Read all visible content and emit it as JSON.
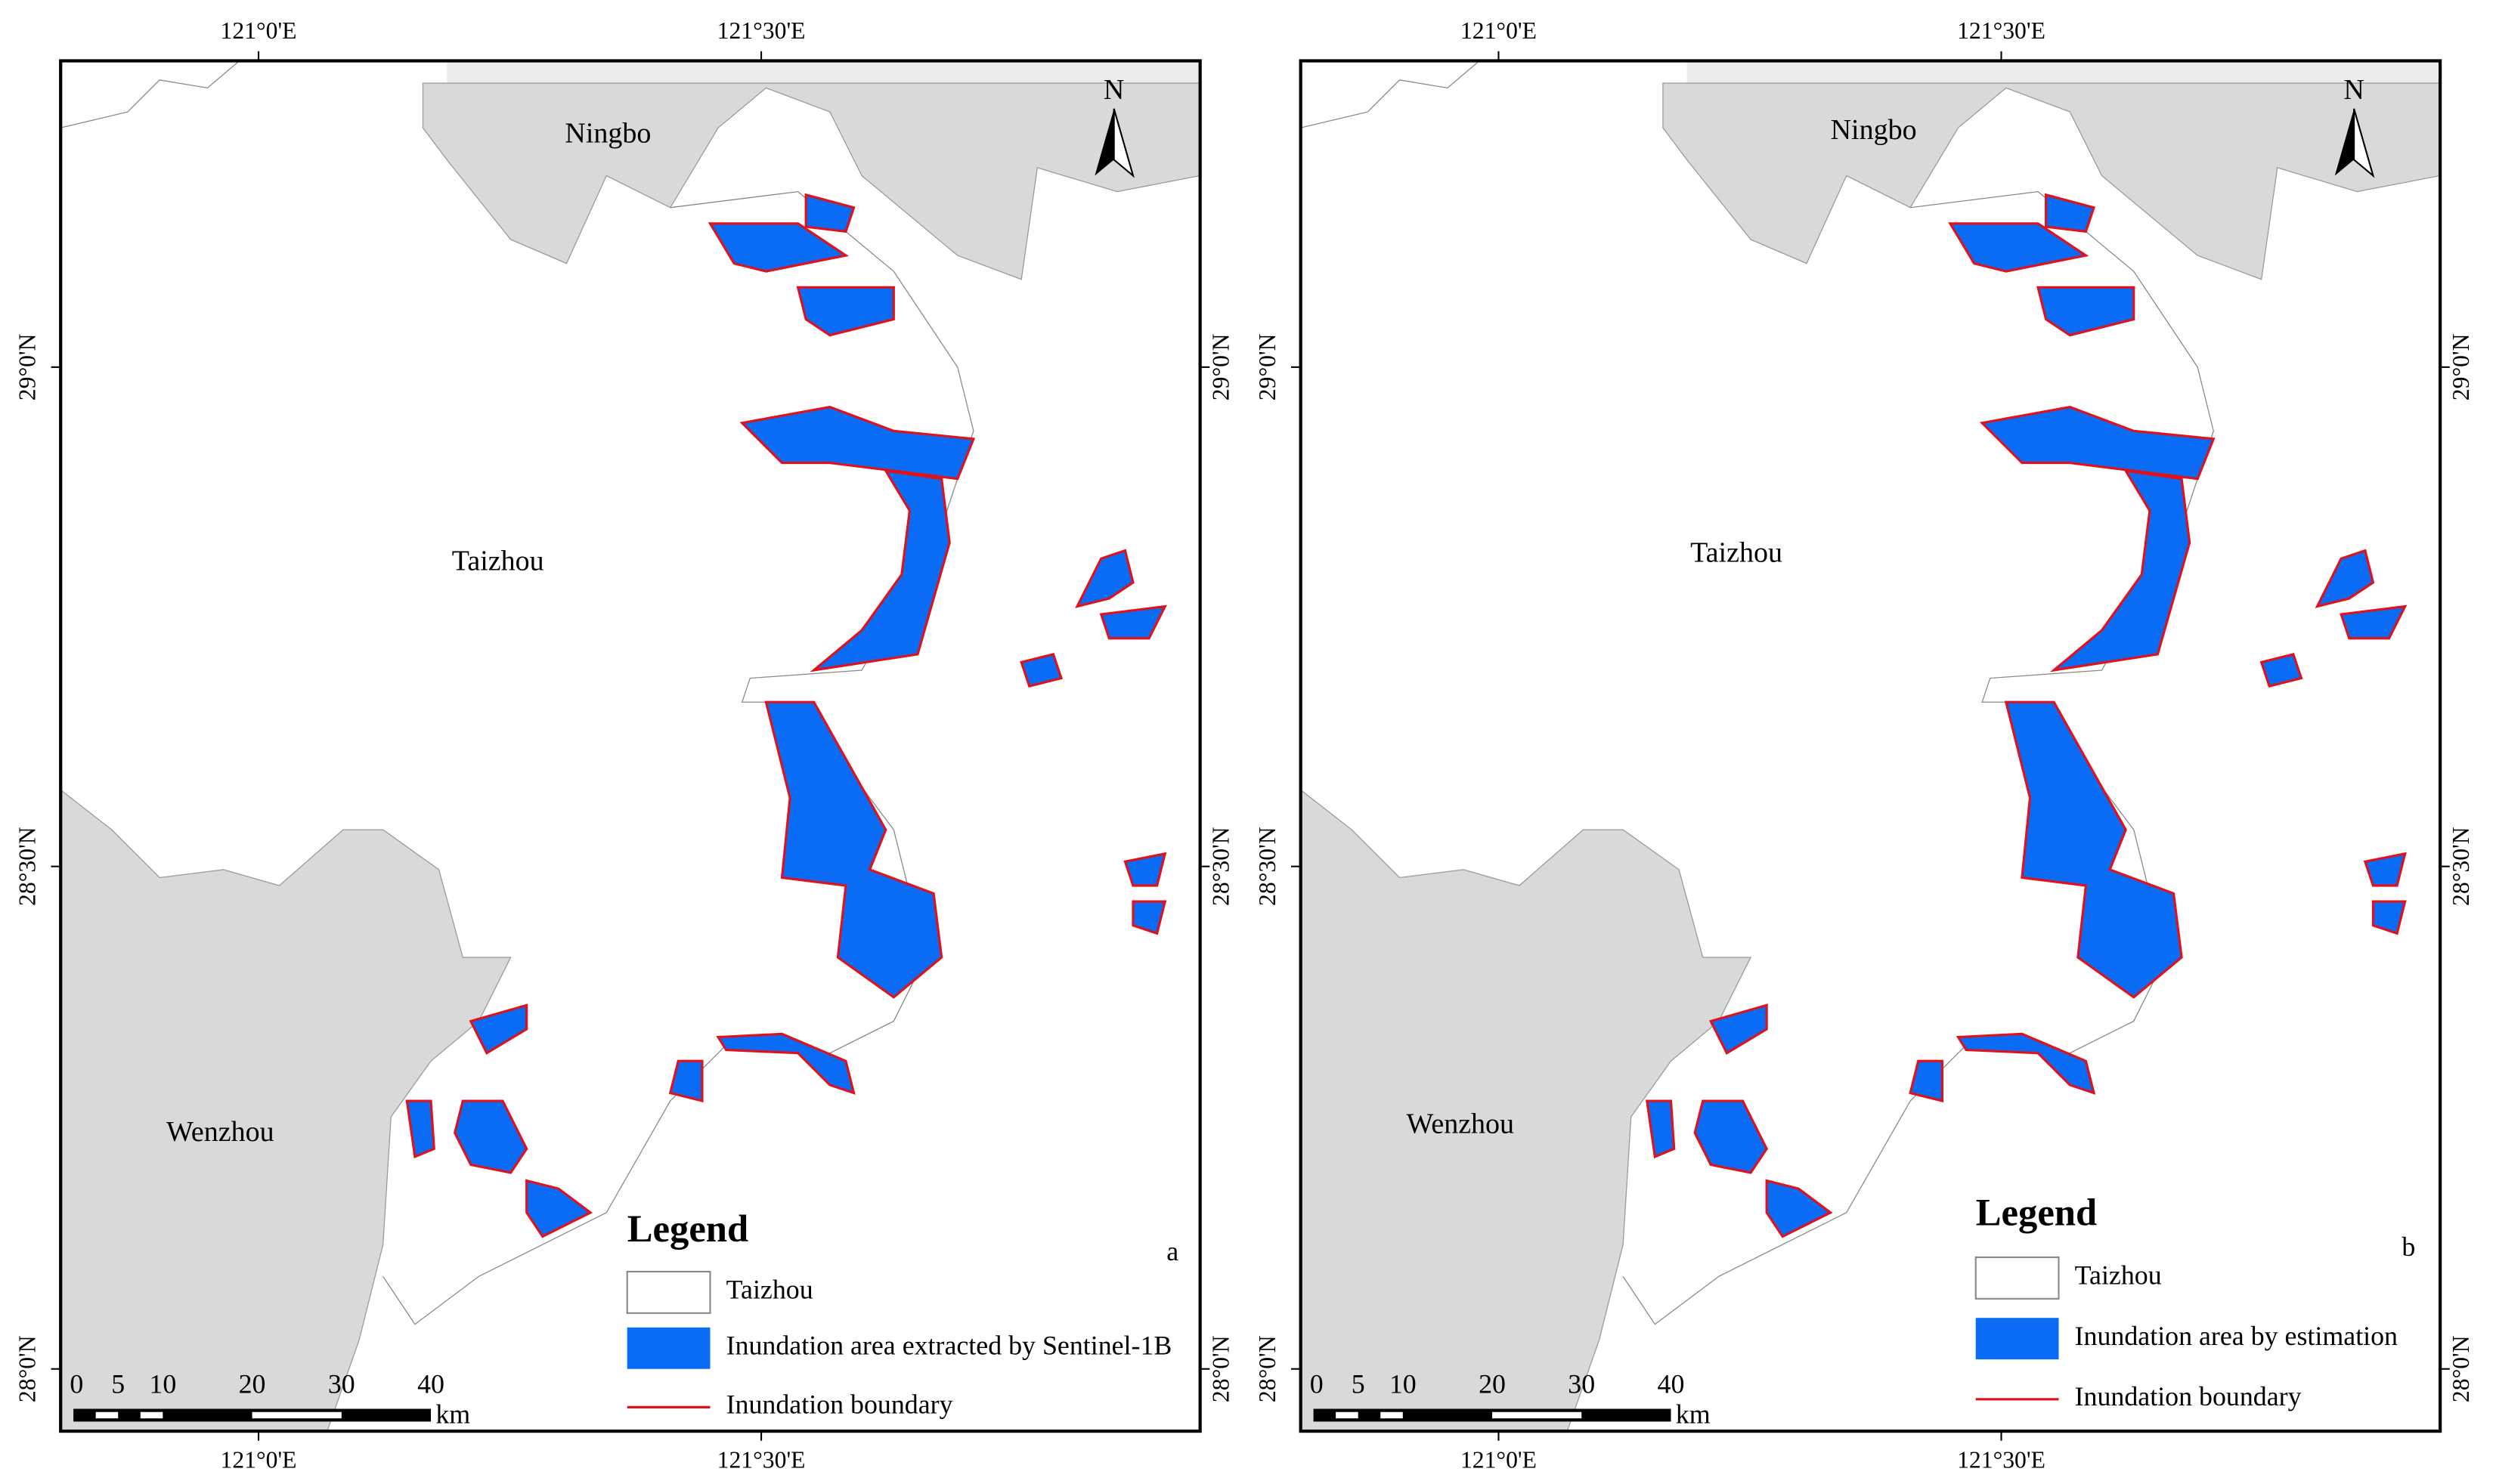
{
  "panels": [
    {
      "letter": "a",
      "north": "N",
      "top_ticks": [
        "121°0'E",
        "121°30'E"
      ],
      "bottom_ticks": [
        "121°0'E",
        "121°30'E"
      ],
      "left_ticks": [
        "29°0'N",
        "28°30'N",
        "28°0'N"
      ],
      "right_ticks": [
        "29°0'N",
        "28°30'N",
        "28°0'N"
      ],
      "places": [
        "Ningbo",
        "Taizhou",
        "Wenzhou"
      ],
      "scale": {
        "labels": [
          "0",
          "5",
          "10",
          "20",
          "30",
          "40"
        ],
        "unit": "km"
      },
      "legend": {
        "title": "Legend",
        "items": [
          "Taizhou",
          "Inundation area extracted by Sentinel-1B",
          "Inundation boundary"
        ]
      }
    },
    {
      "letter": "b",
      "north": "N",
      "top_ticks": [
        "121°0'E",
        "121°30'E"
      ],
      "bottom_ticks": [
        "121°0'E",
        "121°30'E"
      ],
      "left_ticks": [
        "29°0'N",
        "28°30'N",
        "28°0'N"
      ],
      "right_ticks": [
        "29°0'N",
        "28°30'N",
        "28°0'N"
      ],
      "places": [
        "Ningbo",
        "Taizhou",
        "Wenzhou"
      ],
      "scale": {
        "labels": [
          "0",
          "5",
          "10",
          "20",
          "30",
          "40"
        ],
        "unit": "km"
      },
      "legend": {
        "title": "Legend",
        "items": [
          "Taizhou",
          "Inundation area by estimation",
          "Inundation boundary"
        ]
      }
    }
  ]
}
